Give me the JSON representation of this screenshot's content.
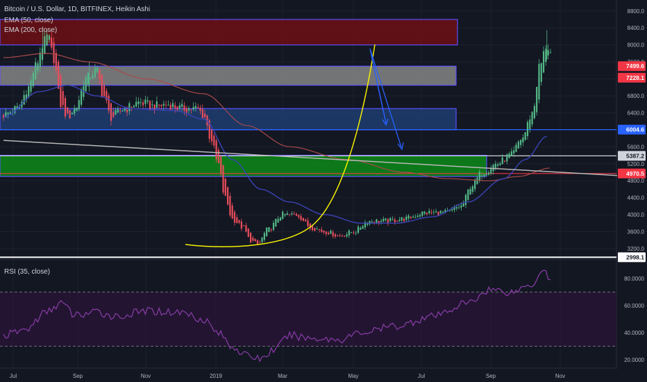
{
  "header": {
    "symbol_line": "Bitcoin / U.S. Dollar, 1D, BITFINEX, Heikin Ashi",
    "ema50": "EMA (50, close)",
    "ema200": "EMA (200, close)",
    "rsi": "RSI (35, close)"
  },
  "colors": {
    "background": "#131722",
    "grid": "#1e2230",
    "bull": "#53b987",
    "bear": "#eb4d5c",
    "ema50": "#3b43b5",
    "ema200": "#a94a4a",
    "rsi": "#8a3ca8",
    "curve": "#f5f000",
    "arrows": "#2962ff",
    "trendline": "#b8b8b8"
  },
  "chart_data": [
    {
      "type": "candlestick",
      "title": "Bitcoin / U.S. Dollar, 1D, BITFINEX, Heikin Ashi",
      "x_ticks": [
        "Jul",
        "Sep",
        "Nov",
        "2019",
        "Mar",
        "May",
        "Jul",
        "Sep",
        "Nov"
      ],
      "y_ticks": [
        "8800.0",
        "8400.0",
        "8000.0",
        "7600.0",
        "7200.0",
        "6800.0",
        "6400.0",
        "6000.0",
        "5600.0",
        "5200.0",
        "4800.0",
        "4400.0",
        "4000.0",
        "3600.0",
        "3200.0"
      ],
      "y_range": [
        3050,
        8800
      ],
      "price_anchors": [
        [
          0,
          6350
        ],
        [
          0.02,
          6500
        ],
        [
          0.035,
          7000
        ],
        [
          0.045,
          7500
        ],
        [
          0.055,
          8000
        ],
        [
          0.062,
          8200
        ],
        [
          0.07,
          7700
        ],
        [
          0.08,
          6600
        ],
        [
          0.09,
          6300
        ],
        [
          0.1,
          6500
        ],
        [
          0.115,
          7200
        ],
        [
          0.13,
          7400
        ],
        [
          0.14,
          6800
        ],
        [
          0.15,
          6300
        ],
        [
          0.17,
          6500
        ],
        [
          0.19,
          6650
        ],
        [
          0.21,
          6550
        ],
        [
          0.23,
          6600
        ],
        [
          0.25,
          6500
        ],
        [
          0.27,
          6500
        ],
        [
          0.28,
          6350
        ],
        [
          0.29,
          5800
        ],
        [
          0.3,
          5200
        ],
        [
          0.31,
          4400
        ],
        [
          0.32,
          3900
        ],
        [
          0.335,
          3700
        ],
        [
          0.345,
          3400
        ],
        [
          0.355,
          3300
        ],
        [
          0.37,
          3650
        ],
        [
          0.39,
          4000
        ],
        [
          0.41,
          4000
        ],
        [
          0.43,
          3700
        ],
        [
          0.45,
          3600
        ],
        [
          0.47,
          3500
        ],
        [
          0.49,
          3600
        ],
        [
          0.51,
          3850
        ],
        [
          0.535,
          3850
        ],
        [
          0.56,
          3900
        ],
        [
          0.59,
          4050
        ],
        [
          0.62,
          4050
        ],
        [
          0.64,
          4200
        ],
        [
          0.655,
          4700
        ],
        [
          0.67,
          5000
        ],
        [
          0.69,
          5200
        ],
        [
          0.71,
          5400
        ],
        [
          0.725,
          5800
        ],
        [
          0.74,
          6400
        ],
        [
          0.75,
          7500
        ],
        [
          0.76,
          8000
        ],
        [
          0.765,
          7800
        ]
      ],
      "ema50_anchors": [
        [
          0,
          6300
        ],
        [
          0.05,
          6900
        ],
        [
          0.09,
          7050
        ],
        [
          0.13,
          6800
        ],
        [
          0.18,
          6500
        ],
        [
          0.24,
          6450
        ],
        [
          0.28,
          6250
        ],
        [
          0.32,
          5300
        ],
        [
          0.36,
          4600
        ],
        [
          0.4,
          4300
        ],
        [
          0.45,
          4000
        ],
        [
          0.5,
          3800
        ],
        [
          0.55,
          3800
        ],
        [
          0.6,
          3950
        ],
        [
          0.65,
          4300
        ],
        [
          0.7,
          4850
        ],
        [
          0.73,
          5300
        ],
        [
          0.76,
          5850
        ]
      ],
      "ema200_anchors": [
        [
          0,
          7700
        ],
        [
          0.06,
          7800
        ],
        [
          0.12,
          7600
        ],
        [
          0.2,
          7200
        ],
        [
          0.28,
          6850
        ],
        [
          0.34,
          6100
        ],
        [
          0.4,
          5600
        ],
        [
          0.48,
          5300
        ],
        [
          0.56,
          5000
        ],
        [
          0.62,
          4850
        ],
        [
          0.68,
          4800
        ],
        [
          0.72,
          4900
        ],
        [
          0.765,
          5100
        ]
      ],
      "zones": [
        {
          "from": 8000,
          "to": 8600,
          "fill": "#6d0f14",
          "stroke": "#5a50ff"
        },
        {
          "from": 7050,
          "to": 7500,
          "fill": "#858585",
          "stroke": "#5a50ff"
        },
        {
          "from": 6000,
          "to": 6500,
          "fill": "#1f3d70",
          "stroke": "#5a50ff"
        },
        {
          "from": 4900,
          "to": 5400,
          "fill": "#0d8a17",
          "stroke": "#5a50ff"
        }
      ],
      "trendline": [
        [
          0,
          5750
        ],
        [
          0.965,
          4820
        ]
      ],
      "horizontal_lines": [
        {
          "label": "6004.6",
          "price": 6004.6,
          "color": "#2962ff"
        },
        {
          "label": "5387.2",
          "price": 5387.2,
          "color": "#d1d4dc"
        },
        {
          "label": "4970.5",
          "price": 4970.5,
          "color": "#f23645"
        },
        {
          "label": "2998.1",
          "price": 2998.1,
          "color": "#ffffff"
        }
      ],
      "price_tags": [
        {
          "label": "7499.6",
          "price": 7499.6,
          "color": "#f23645"
        },
        {
          "label": "7228.1",
          "price": 7228.1,
          "color": "#f23645"
        }
      ]
    },
    {
      "type": "line",
      "title": "RSI (35, close)",
      "y_ticks": [
        "80.0000",
        "60.0000",
        "40.0000",
        "20.0000"
      ],
      "y_range": [
        17,
        90
      ],
      "reference_lines": [
        70,
        30
      ],
      "values_anchors": [
        [
          0,
          38
        ],
        [
          0.03,
          42
        ],
        [
          0.06,
          55
        ],
        [
          0.08,
          62
        ],
        [
          0.1,
          53
        ],
        [
          0.13,
          55
        ],
        [
          0.16,
          52
        ],
        [
          0.2,
          56
        ],
        [
          0.25,
          55
        ],
        [
          0.28,
          50
        ],
        [
          0.3,
          40
        ],
        [
          0.32,
          30
        ],
        [
          0.34,
          23
        ],
        [
          0.36,
          21
        ],
        [
          0.38,
          28
        ],
        [
          0.4,
          38
        ],
        [
          0.43,
          36
        ],
        [
          0.47,
          35
        ],
        [
          0.5,
          40
        ],
        [
          0.55,
          45
        ],
        [
          0.6,
          52
        ],
        [
          0.65,
          62
        ],
        [
          0.68,
          72
        ],
        [
          0.71,
          70
        ],
        [
          0.74,
          76
        ],
        [
          0.755,
          88
        ],
        [
          0.765,
          78
        ]
      ]
    }
  ]
}
